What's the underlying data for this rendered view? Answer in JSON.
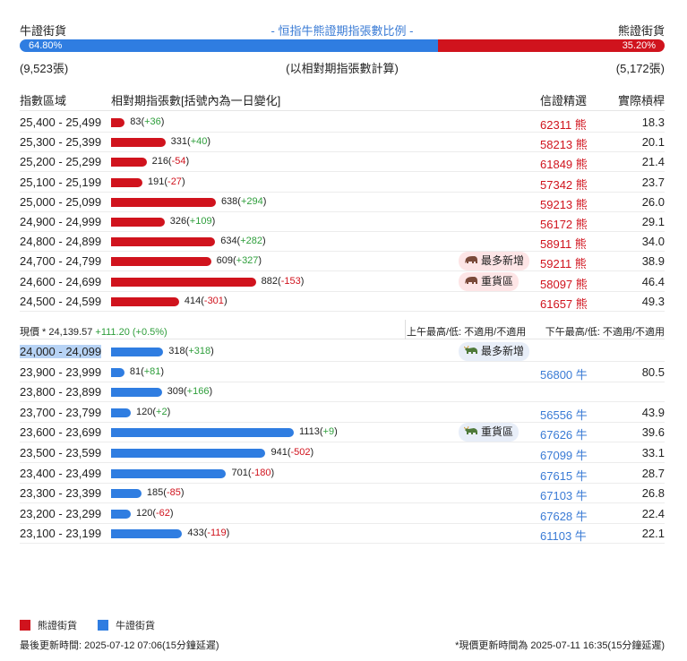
{
  "header": {
    "bull_label": "牛證街貨",
    "title": "- 恒指牛熊證期指張數比例 -",
    "bear_label": "熊證街貨",
    "bull_pct": "64.80%",
    "bear_pct": "35.20%",
    "bull_share": 0.648,
    "bull_count": "(9,523張)",
    "basis": "(以相對期指張數計算)",
    "bear_count": "(5,172張)"
  },
  "columns": {
    "range": "指數區域",
    "bar": "相對期指張數[括號內為一日變化]",
    "cbbc": "信證精選",
    "leverage": "實際槓桿"
  },
  "bear_rows": [
    {
      "range": "25,400 - 25,499",
      "count": "83",
      "change": "+36",
      "cbbc": "62311 熊",
      "lev": "18.3",
      "value": 83
    },
    {
      "range": "25,300 - 25,399",
      "count": "331",
      "change": "+40",
      "cbbc": "58213 熊",
      "lev": "20.1",
      "value": 331
    },
    {
      "range": "25,200 - 25,299",
      "count": "216",
      "change": "-54",
      "cbbc": "61849 熊",
      "lev": "21.4",
      "value": 216
    },
    {
      "range": "25,100 - 25,199",
      "count": "191",
      "change": "-27",
      "cbbc": "57342 熊",
      "lev": "23.7",
      "value": 191
    },
    {
      "range": "25,000 - 25,099",
      "count": "638",
      "change": "+294",
      "cbbc": "59213 熊",
      "lev": "26.0",
      "value": 638
    },
    {
      "range": "24,900 - 24,999",
      "count": "326",
      "change": "+109",
      "cbbc": "56172 熊",
      "lev": "29.1",
      "value": 326
    },
    {
      "range": "24,800 - 24,899",
      "count": "634",
      "change": "+282",
      "cbbc": "58911 熊",
      "lev": "34.0",
      "value": 634
    },
    {
      "range": "24,700 - 24,799",
      "count": "609",
      "change": "+327",
      "cbbc": "59211 熊",
      "lev": "38.9",
      "value": 609,
      "badge": "最多新增"
    },
    {
      "range": "24,600 - 24,699",
      "count": "882",
      "change": "-153",
      "cbbc": "58097 熊",
      "lev": "46.4",
      "value": 882,
      "badge": "重貨區"
    },
    {
      "range": "24,500 - 24,599",
      "count": "414",
      "change": "-301",
      "cbbc": "61657 熊",
      "lev": "49.3",
      "value": 414
    }
  ],
  "price": {
    "now_label": "現價 *",
    "now_value": "24,139.57",
    "now_change": "+111.20 (+0.5%)",
    "am": "上午最高/低: 不適用/不適用",
    "pm": "下午最高/低: 不適用/不適用"
  },
  "bull_rows": [
    {
      "range": "24,000 - 24,099",
      "count": "318",
      "change": "+318",
      "cbbc": "",
      "lev": "",
      "value": 318,
      "badge": "最多新增",
      "selected": true
    },
    {
      "range": "23,900 - 23,999",
      "count": "81",
      "change": "+81",
      "cbbc": "56800 牛",
      "lev": "80.5",
      "value": 81
    },
    {
      "range": "23,800 - 23,899",
      "count": "309",
      "change": "+166",
      "cbbc": "",
      "lev": "",
      "value": 309
    },
    {
      "range": "23,700 - 23,799",
      "count": "120",
      "change": "+2",
      "cbbc": "56556 牛",
      "lev": "43.9",
      "value": 120
    },
    {
      "range": "23,600 - 23,699",
      "count": "1113",
      "change": "+9",
      "cbbc": "67626 牛",
      "lev": "39.6",
      "value": 1113,
      "badge": "重貨區"
    },
    {
      "range": "23,500 - 23,599",
      "count": "941",
      "change": "-502",
      "cbbc": "67099 牛",
      "lev": "33.1",
      "value": 941
    },
    {
      "range": "23,400 - 23,499",
      "count": "701",
      "change": "-180",
      "cbbc": "67615 牛",
      "lev": "28.7",
      "value": 701
    },
    {
      "range": "23,300 - 23,399",
      "count": "185",
      "change": "-85",
      "cbbc": "67103 牛",
      "lev": "26.8",
      "value": 185
    },
    {
      "range": "23,200 - 23,299",
      "count": "120",
      "change": "-62",
      "cbbc": "67628 牛",
      "lev": "22.4",
      "value": 120
    },
    {
      "range": "23,100 - 23,199",
      "count": "433",
      "change": "-119",
      "cbbc": "61103 牛",
      "lev": "22.1",
      "value": 433
    }
  ],
  "legend": {
    "bear": "熊證街貨",
    "bull": "牛證街貨"
  },
  "footer": {
    "left": "最後更新時間: 2025-07-12 07:06(15分鐘延遲)",
    "right": "*現價更新時間為 2025-07-11 16:35(15分鐘延遲)"
  },
  "colors": {
    "bear": "#d0131d",
    "bull": "#2f7de1",
    "positive": "#2e9e3b"
  }
}
